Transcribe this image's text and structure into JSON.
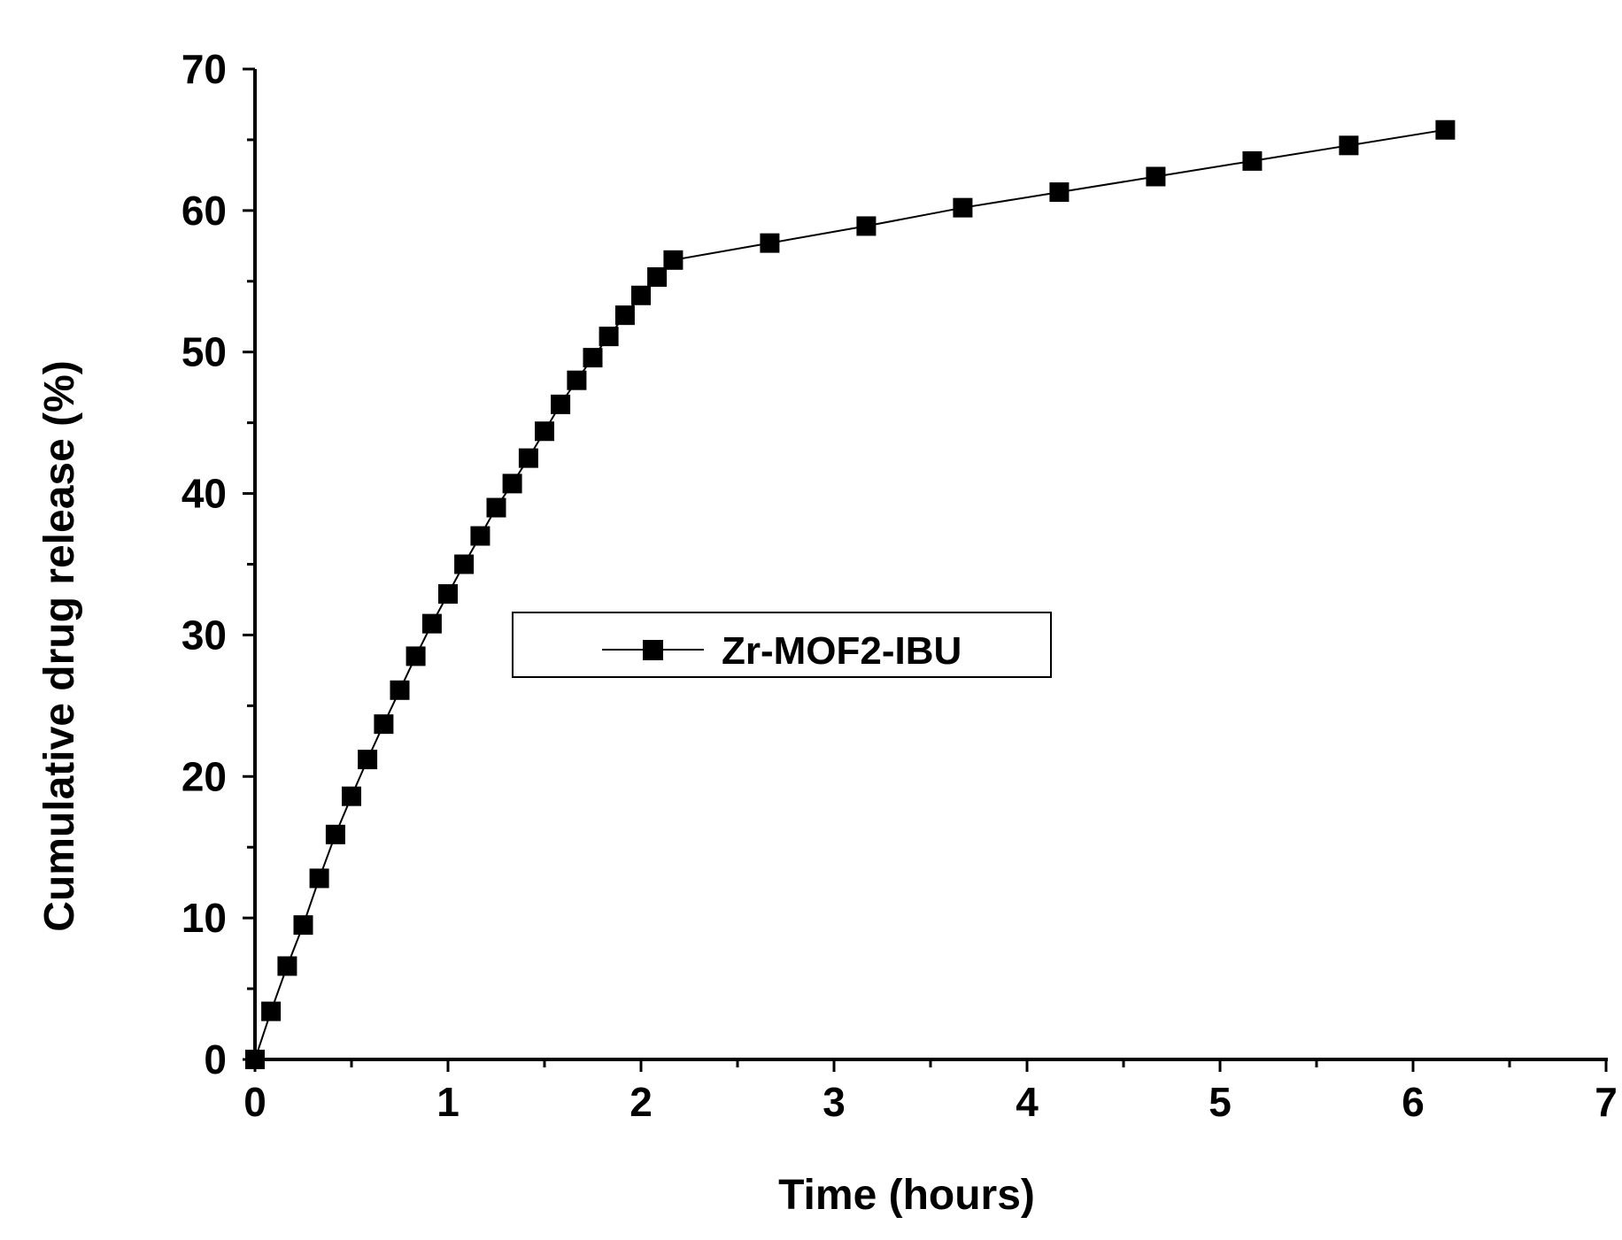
{
  "chart_data": {
    "type": "line",
    "xlabel": "Time (hours)",
    "ylabel": "Cumulative drug release (%)",
    "xlim": [
      0,
      7
    ],
    "ylim": [
      0,
      70
    ],
    "xticks": [
      "0",
      "1",
      "2",
      "3",
      "4",
      "5",
      "6",
      "7"
    ],
    "yticks": [
      "0",
      "10",
      "20",
      "30",
      "40",
      "50",
      "60",
      "70"
    ],
    "grid": false,
    "legend_position": "center",
    "marker": "square",
    "line_color": "#000000",
    "series": [
      {
        "name": "Zr-MOF2-IBU",
        "x": [
          0,
          0.083,
          0.167,
          0.25,
          0.333,
          0.417,
          0.5,
          0.583,
          0.667,
          0.75,
          0.833,
          0.917,
          1.0,
          1.083,
          1.167,
          1.25,
          1.333,
          1.417,
          1.5,
          1.583,
          1.667,
          1.75,
          1.833,
          1.917,
          2.0,
          2.083,
          2.167,
          2.667,
          3.167,
          3.667,
          4.167,
          4.667,
          5.167,
          5.667,
          6.167
        ],
        "y": [
          0,
          3.4,
          6.6,
          9.5,
          12.8,
          15.9,
          18.6,
          21.2,
          23.7,
          26.1,
          28.5,
          30.8,
          32.9,
          35.0,
          37.0,
          39.0,
          40.7,
          42.5,
          44.4,
          46.3,
          48.0,
          49.6,
          51.1,
          52.6,
          54.0,
          55.3,
          56.5,
          57.7,
          58.9,
          60.2,
          61.3,
          62.4,
          63.5,
          64.6,
          65.7
        ]
      }
    ]
  }
}
